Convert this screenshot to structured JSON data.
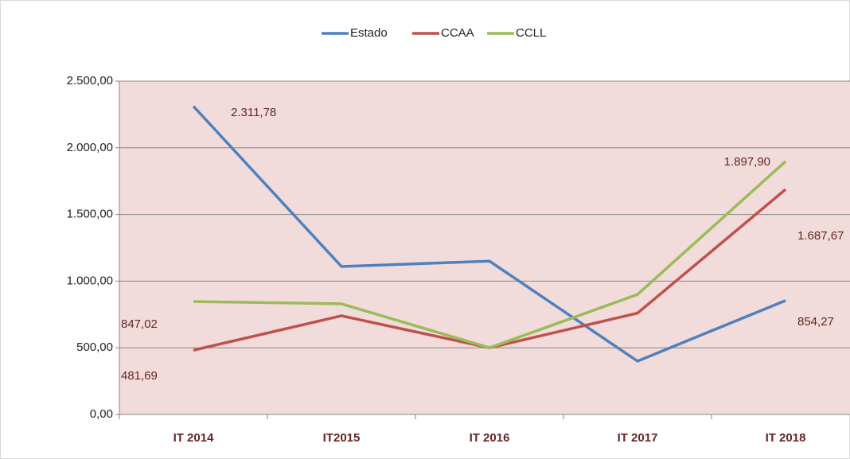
{
  "chart_data": {
    "type": "line",
    "categories": [
      "IT 2014",
      "IT2015",
      "IT 2016",
      "IT 2017",
      "IT 2018"
    ],
    "series": [
      {
        "name": "Estado",
        "color": "#4f81bd",
        "values": [
          2311.78,
          1110,
          1150,
          400,
          854.27
        ],
        "value_labels": [
          "2.311,78",
          null,
          null,
          null,
          "854,27"
        ]
      },
      {
        "name": "CCAA",
        "color": "#c0504d",
        "values": [
          481.69,
          740,
          500,
          760,
          1687.67
        ],
        "value_labels": [
          "481,69",
          null,
          null,
          null,
          "1.687,67"
        ]
      },
      {
        "name": "CCLL",
        "color": "#9bbb59",
        "values": [
          847.02,
          830,
          500,
          900,
          1897.9
        ],
        "value_labels": [
          "847,02",
          null,
          null,
          null,
          "1.897,90"
        ]
      }
    ],
    "ylim": [
      0,
      2500
    ],
    "yticks": [
      {
        "value": 0,
        "label": "0,00"
      },
      {
        "value": 500,
        "label": "500,00"
      },
      {
        "value": 1000,
        "label": "1.000,00"
      },
      {
        "value": 1500,
        "label": "1.500,00"
      },
      {
        "value": 2000,
        "label": "2.000,00"
      },
      {
        "value": 2500,
        "label": "2.500,00"
      }
    ],
    "grid": true,
    "legend": "top"
  }
}
